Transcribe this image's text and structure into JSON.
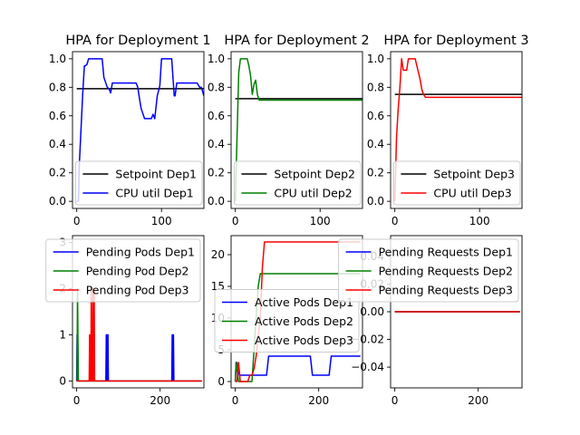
{
  "chart_data": [
    {
      "type": "line",
      "title": "HPA for Deployment 1",
      "xlim": [
        -5,
        150
      ],
      "ylim": [
        -0.05,
        1.05
      ],
      "xticks": [
        0,
        100
      ],
      "yticks": [
        0.0,
        0.2,
        0.4,
        0.6,
        0.8,
        1.0
      ],
      "ytick_format": "fixed1",
      "legend": "lower-right",
      "series": [
        {
          "name": "Setpoint Dep1",
          "color": "#000000",
          "x": [
            0,
            150
          ],
          "y": [
            0.79,
            0.79
          ]
        },
        {
          "name": "CPU util Dep1",
          "color": "#0000ff",
          "x": [
            0,
            2,
            3,
            5,
            7,
            9,
            10,
            12,
            14,
            20,
            22,
            25,
            28,
            30,
            32,
            36,
            38,
            40,
            42,
            45,
            50,
            55,
            62,
            65,
            70,
            72,
            74,
            76,
            80,
            85,
            86,
            88,
            90,
            92,
            95,
            98,
            100,
            102,
            104,
            110,
            112,
            115,
            116,
            118,
            120,
            130,
            140,
            142,
            145,
            147,
            150
          ],
          "y": [
            0.0,
            0.0,
            0.25,
            0.5,
            0.75,
            0.95,
            0.95,
            0.96,
            1.0,
            1.0,
            1.0,
            1.0,
            1.0,
            1.0,
            0.87,
            0.8,
            0.79,
            0.76,
            0.83,
            0.83,
            0.83,
            0.83,
            0.83,
            0.83,
            0.83,
            0.8,
            0.72,
            0.65,
            0.58,
            0.58,
            0.58,
            0.58,
            0.61,
            0.58,
            0.74,
            0.81,
            1.0,
            1.0,
            1.0,
            1.0,
            1.0,
            0.74,
            0.74,
            0.83,
            0.83,
            0.83,
            0.83,
            0.83,
            0.8,
            0.8,
            0.74
          ]
        }
      ]
    },
    {
      "type": "line",
      "title": "HPA for Deployment 2",
      "xlim": [
        -5,
        150
      ],
      "ylim": [
        -0.05,
        1.05
      ],
      "xticks": [
        0,
        100
      ],
      "yticks": [
        0.0,
        0.2,
        0.4,
        0.6,
        0.8,
        1.0
      ],
      "ytick_format": "fixed1",
      "legend": "lower-right",
      "series": [
        {
          "name": "Setpoint Dep2",
          "color": "#000000",
          "x": [
            0,
            150
          ],
          "y": [
            0.72,
            0.72
          ]
        },
        {
          "name": "CPU util Dep2",
          "color": "#008000",
          "x": [
            0,
            2,
            4,
            6,
            10,
            14,
            16,
            18,
            20,
            22,
            24,
            26,
            28,
            30,
            40,
            150
          ],
          "y": [
            0.0,
            0.45,
            0.9,
            1.0,
            1.0,
            1.0,
            0.95,
            0.88,
            0.75,
            0.82,
            0.85,
            0.75,
            0.71,
            0.71,
            0.71,
            0.71
          ]
        }
      ]
    },
    {
      "type": "line",
      "title": "HPA for Deployment 3",
      "xlim": [
        -5,
        150
      ],
      "ylim": [
        -0.05,
        1.05
      ],
      "xticks": [
        0,
        100
      ],
      "yticks": [
        0.0,
        0.2,
        0.4,
        0.6,
        0.8,
        1.0
      ],
      "ytick_format": "fixed1",
      "legend": "lower-right",
      "series": [
        {
          "name": "Setpoint Dep3",
          "color": "#000000",
          "x": [
            0,
            150
          ],
          "y": [
            0.75,
            0.75
          ]
        },
        {
          "name": "CPU util Dep3",
          "color": "#ff0000",
          "x": [
            0,
            2,
            4,
            6,
            8,
            10,
            12,
            14,
            16,
            18,
            20,
            24,
            26,
            28,
            30,
            32,
            34,
            36,
            40,
            150
          ],
          "y": [
            0.0,
            0.45,
            0.65,
            0.8,
            1.0,
            0.92,
            0.92,
            0.92,
            1.0,
            1.0,
            1.0,
            1.0,
            0.95,
            0.9,
            0.85,
            0.78,
            0.75,
            0.73,
            0.73,
            0.73
          ]
        }
      ]
    },
    {
      "type": "line",
      "title": "",
      "xlim": [
        -10,
        305
      ],
      "ylim": [
        -0.15,
        3.15
      ],
      "xticks": [
        0,
        200
      ],
      "yticks": [
        0,
        1,
        2,
        3
      ],
      "ytick_format": "int",
      "legend": "upper-right",
      "series": [
        {
          "name": "Pending Pods Dep1",
          "color": "#0000ff",
          "x": [
            0,
            1,
            2,
            3,
            4,
            5,
            70,
            71,
            72,
            73,
            74,
            75,
            76,
            77,
            78,
            228,
            229,
            230,
            231,
            232,
            233,
            300
          ],
          "y": [
            0,
            1,
            1,
            0,
            0,
            0,
            0,
            1,
            1,
            0,
            1,
            1,
            0,
            0,
            0,
            0,
            1,
            1,
            0,
            1,
            0,
            0
          ]
        },
        {
          "name": "Pending Pod Dep2",
          "color": "#008000",
          "x": [
            0,
            1,
            2,
            3,
            4,
            5,
            300
          ],
          "y": [
            0,
            0,
            2,
            1,
            0,
            0,
            0
          ]
        },
        {
          "name": "Pending Pod Dep3",
          "color": "#ff0000",
          "x": [
            0,
            20,
            30,
            31,
            32,
            33,
            34,
            35,
            36,
            37,
            38,
            39,
            40,
            41,
            42,
            43,
            44,
            45,
            300
          ],
          "y": [
            0,
            0,
            0,
            1,
            0,
            1,
            0,
            2,
            0,
            1,
            0,
            2,
            0,
            1,
            2,
            0,
            0,
            0,
            0
          ]
        }
      ]
    },
    {
      "type": "line",
      "title": "",
      "xlim": [
        -10,
        305
      ],
      "ylim": [
        -1.0,
        23.0
      ],
      "xticks": [
        0,
        200
      ],
      "yticks": [
        0,
        5,
        10,
        15,
        20
      ],
      "ytick_format": "int",
      "legend": "center-right",
      "series": [
        {
          "name": "Active Pods Dep1",
          "color": "#0000ff",
          "x": [
            0,
            2,
            4,
            6,
            7,
            10,
            12,
            14,
            40,
            45,
            75,
            80,
            180,
            185,
            225,
            230,
            300
          ],
          "y": [
            0,
            3,
            3,
            1,
            2,
            1,
            1,
            1,
            1,
            1,
            1,
            4,
            4,
            1,
            1,
            4,
            4
          ]
        },
        {
          "name": "Active Pods Dep2",
          "color": "#008000",
          "x": [
            0,
            2,
            4,
            6,
            8,
            10,
            40,
            45,
            50,
            55,
            60,
            300
          ],
          "y": [
            0,
            3,
            2,
            1,
            0,
            0,
            0,
            5,
            10,
            15,
            17,
            17
          ]
        },
        {
          "name": "Active Pods Dep3",
          "color": "#ff0000",
          "x": [
            0,
            4,
            8,
            12,
            30,
            35,
            40,
            45,
            50,
            55,
            60,
            65,
            70,
            300
          ],
          "y": [
            0,
            0,
            3,
            0,
            0,
            1,
            1,
            2,
            4,
            7,
            10,
            18,
            22,
            22
          ]
        }
      ]
    },
    {
      "type": "line",
      "title": "",
      "xlim": [
        -10,
        305
      ],
      "ylim": [
        -0.055,
        0.055
      ],
      "xticks": [
        0,
        200
      ],
      "yticks": [
        -0.04,
        -0.02,
        0.0,
        0.02,
        0.04
      ],
      "ytick_format": "fixed2",
      "legend": "upper-right",
      "series": [
        {
          "name": "Pending Requests Dep1",
          "color": "#0000ff",
          "x": [
            0,
            300
          ],
          "y": [
            0,
            0
          ]
        },
        {
          "name": "Pending Requests Dep2",
          "color": "#008000",
          "x": [
            0,
            300
          ],
          "y": [
            0,
            0
          ]
        },
        {
          "name": "Pending Requests Dep3",
          "color": "#ff0000",
          "x": [
            0,
            300
          ],
          "y": [
            0,
            0
          ]
        }
      ]
    }
  ]
}
